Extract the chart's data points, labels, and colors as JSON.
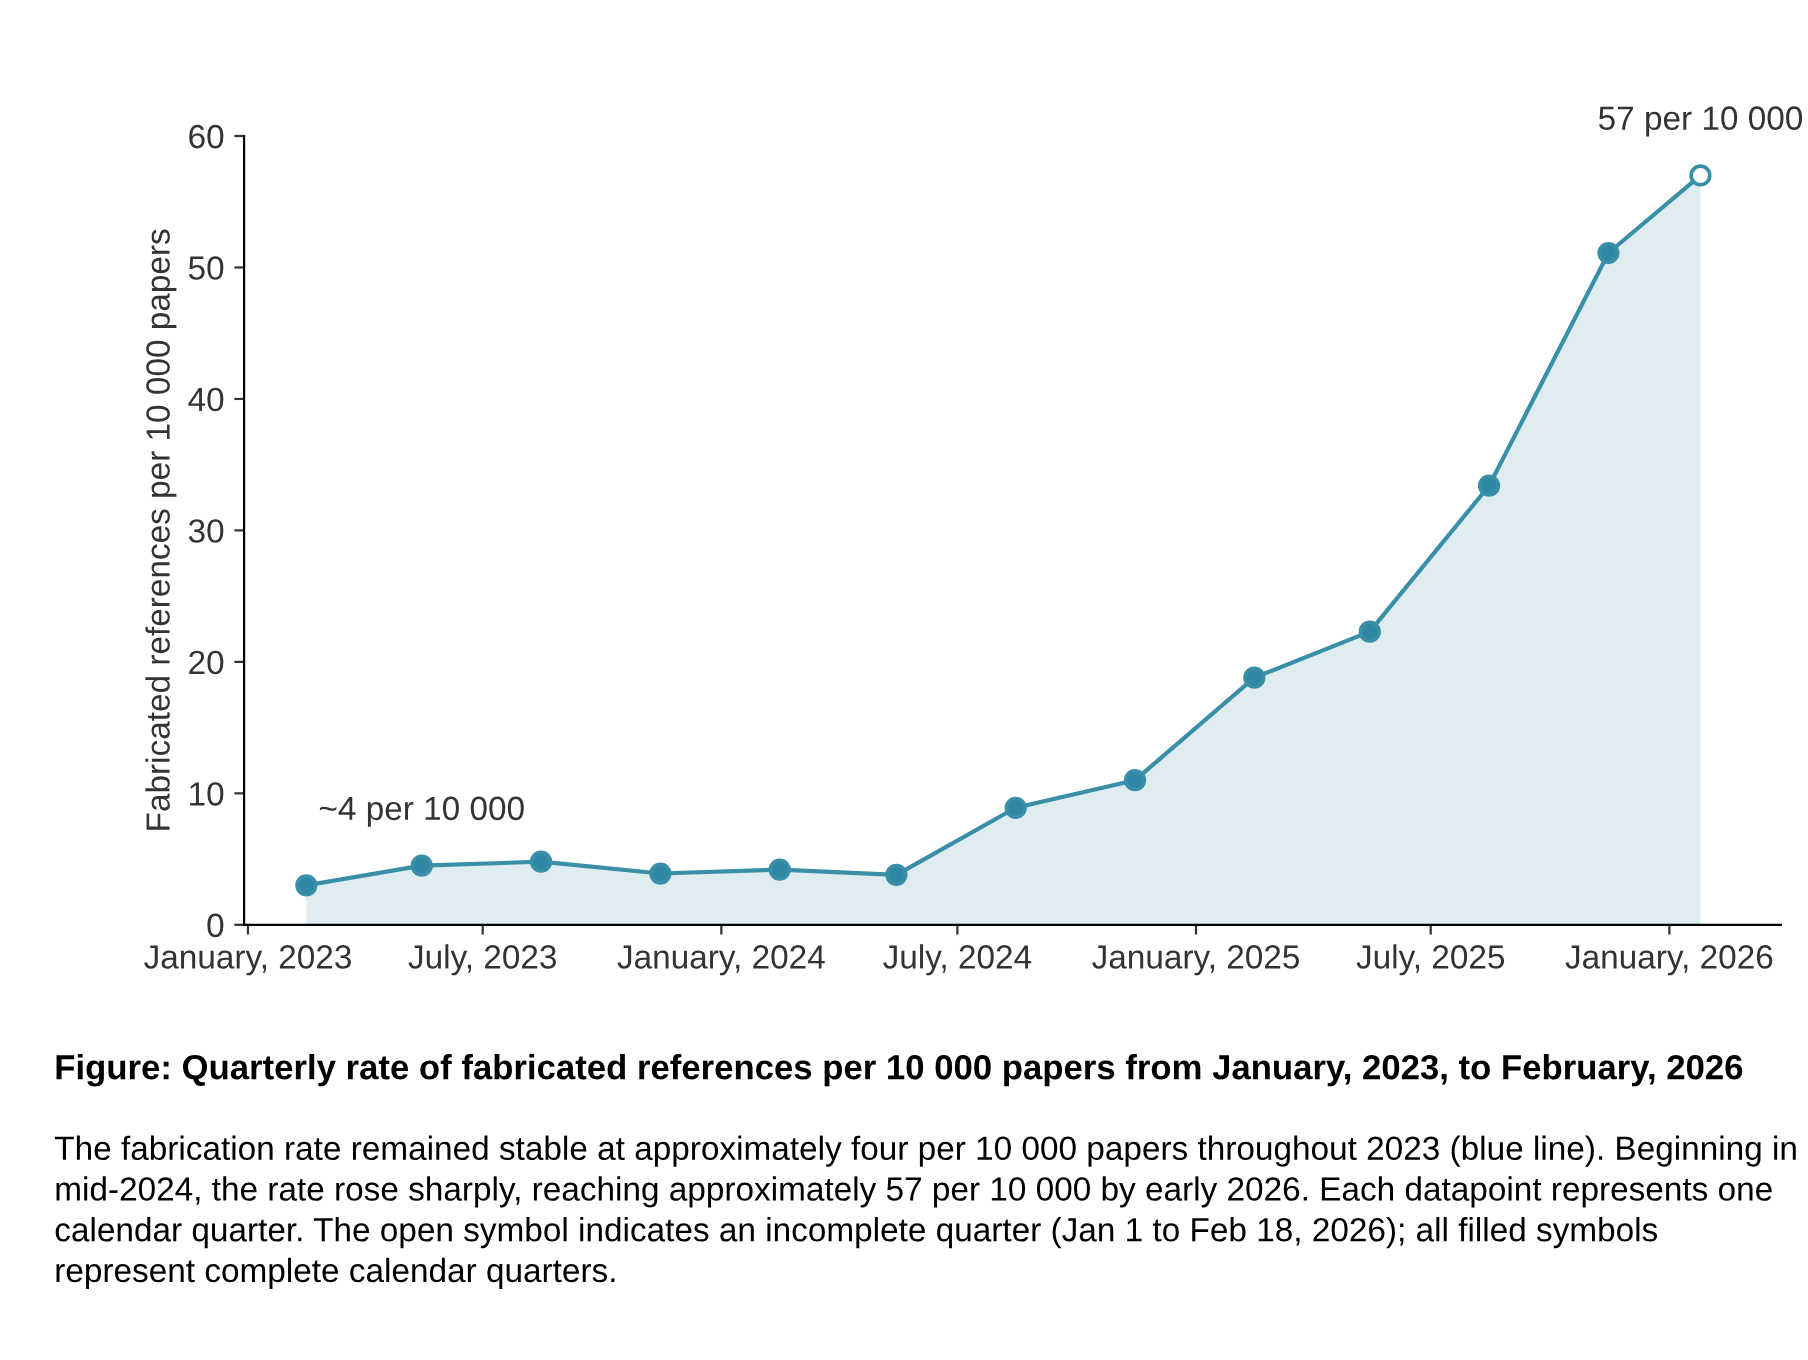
{
  "chart_data": {
    "type": "area",
    "title": "Figure: Quarterly rate of fabricated references per 10 000 papers from January, 2023, to February, 2026",
    "annotations": [
      {
        "text": "~4 per 10 000",
        "x": "2023-05-15",
        "y": 4.5
      },
      {
        "text": "57 per 10 000",
        "x": "2026-01-25",
        "y": 57
      },
      "The fabrication rate remained stable at approximately four per 10 000 papers throughout 2023 (blue line). Beginning in mid-2024, the rate rose sharply, reaching approximately 57 per 10 000 by early 2026. Each datapoint represents one calendar quarter. The open symbol indicates an incomplete quarter (Jan 1 to Feb 18, 2026); all filled symbols represent complete calendar quarters."
    ],
    "ylabel": "Fabricated references per 10 000 papers",
    "series": [
      {
        "color": "#3a8fa8",
        "x": [
          "2023-02-15",
          "2023-05-15",
          "2023-08-15",
          "2023-11-15",
          "2024-02-15",
          "2024-05-15",
          "2024-08-15",
          "2024-11-15",
          "2025-02-15",
          "2025-05-15",
          "2025-08-15",
          "2025-11-15",
          "2026-01-25"
        ],
        "values": [
          3.0,
          4.5,
          4.8,
          3.9,
          4.2,
          3.8,
          8.9,
          11.0,
          18.8,
          22.3,
          33.4,
          51.1,
          57
        ]
      },
      {
        "type": "scatter",
        "color": "#2f87a3",
        "marker": "circle",
        "x": [
          "2023-02-15",
          "2023-05-15",
          "2023-08-15",
          "2023-11-15",
          "2024-02-15",
          "2024-05-15",
          "2024-08-15",
          "2024-11-15",
          "2025-02-15",
          "2025-05-15",
          "2025-08-15",
          "2025-11-15"
        ],
        "values": [
          3.0,
          4.5,
          4.8,
          3.9,
          4.2,
          3.8,
          8.9,
          11.0,
          18.8,
          22.3,
          33.4,
          51.1
        ]
      },
      {
        "type": "scatter",
        "color": "#ffffff",
        "marker": "circle",
        "x": [
          "2026-01-25"
        ],
        "values": [
          57
        ]
      }
    ],
    "xlim": [
      "2022-12-29",
      "2026-03-28"
    ],
    "xticks": [
      {
        "value": "2023-01-01",
        "label": "January, 2023"
      },
      {
        "value": "2023-07-01",
        "label": "July, 2023"
      },
      {
        "value": "2024-01-01",
        "label": "January, 2024"
      },
      {
        "value": "2024-07-01",
        "label": "July, 2024"
      },
      {
        "value": "2025-01-01",
        "label": "January, 2025"
      },
      {
        "value": "2025-07-01",
        "label": "July, 2025"
      },
      {
        "value": "2026-01-01",
        "label": "January, 2026"
      }
    ],
    "ylim": [
      0,
      60
    ],
    "yticks": [
      0,
      10,
      20,
      30,
      40,
      50,
      60
    ],
    "grid": false,
    "legend": false
  }
}
